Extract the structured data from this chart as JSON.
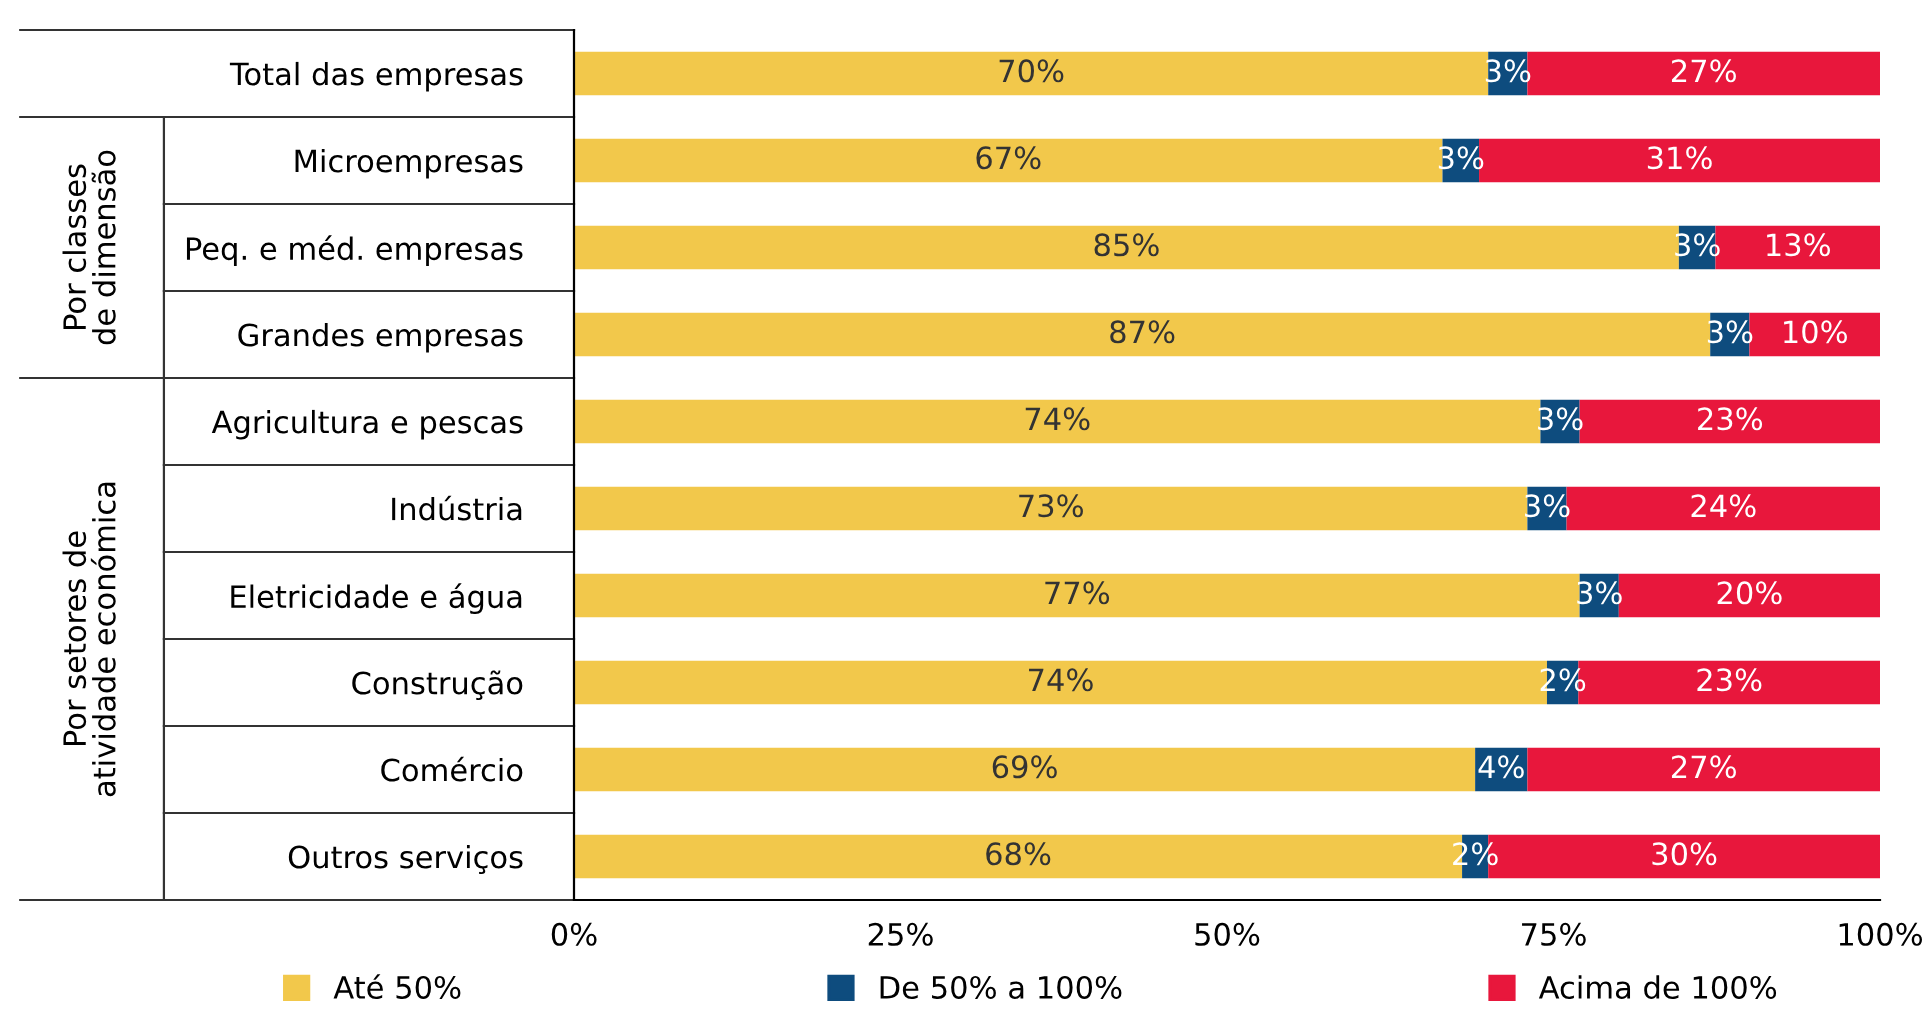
{
  "chart_data": {
    "type": "bar",
    "orientation": "horizontal",
    "stacked": true,
    "legend": "bottom",
    "grid": false,
    "categories": [
      "Total das empresas",
      "Microempresas",
      "Peq. e méd. empresas",
      "Grandes empresas",
      "Agricultura e pescas",
      "Indústria",
      "Eletricidade e água",
      "Construção",
      "Comércio",
      "Outros serviços"
    ],
    "series": [
      {
        "name": "Até 50%",
        "color": "#f2c84b",
        "values": [
          70,
          66.5,
          84.6,
          87,
          74,
          73,
          77,
          74.5,
          69,
          68
        ],
        "value_labels": [
          "70%",
          "67%",
          "85%",
          "87%",
          "74%",
          "73%",
          "77%",
          "74%",
          "69%",
          "68%"
        ]
      },
      {
        "name": "De 50% a 100%",
        "color": "#0e4c7e",
        "values": [
          3,
          2.8,
          2.8,
          3,
          3,
          3,
          3,
          2.4,
          4,
          2
        ],
        "value_labels": [
          "3%",
          "3%",
          "3%",
          "3%",
          "3%",
          "3%",
          "3%",
          "2%",
          "4%",
          "2%"
        ]
      },
      {
        "name": "Acima de 100%",
        "color": "#e8173c",
        "values": [
          27,
          30.7,
          12.6,
          10,
          23,
          24,
          20,
          23.1,
          27,
          30
        ],
        "value_labels": [
          "27%",
          "31%",
          "13%",
          "10%",
          "23%",
          "24%",
          "20%",
          "23%",
          "27%",
          "30%"
        ]
      }
    ],
    "xlim": [
      0,
      100
    ],
    "xticks": [
      {
        "value": 0,
        "label": "0%"
      },
      {
        "value": 25,
        "label": "25%"
      },
      {
        "value": 50,
        "label": "50%"
      },
      {
        "value": 75,
        "label": "75%"
      },
      {
        "value": 100,
        "label": "100%"
      }
    ],
    "annotations": [
      "Por classes de dimensão",
      "Por setores de atividade económica"
    ]
  }
}
